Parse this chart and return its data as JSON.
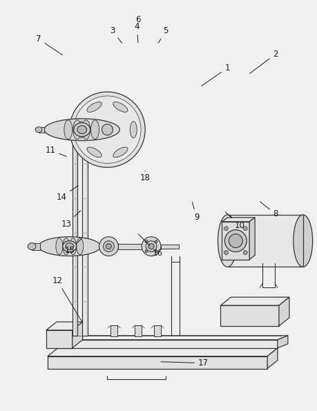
{
  "bg_color": "#f0f0f0",
  "line_color": "#333333",
  "figsize": [
    4.59,
    5.95
  ],
  "dpi": 100,
  "labels_data": [
    [
      1,
      330,
      498,
      290,
      470
    ],
    [
      2,
      400,
      518,
      360,
      488
    ],
    [
      3,
      162,
      552,
      178,
      532
    ],
    [
      4,
      198,
      558,
      200,
      532
    ],
    [
      5,
      240,
      552,
      228,
      532
    ],
    [
      6,
      200,
      568,
      200,
      558
    ],
    [
      7,
      55,
      540,
      92,
      515
    ],
    [
      8,
      400,
      285,
      375,
      305
    ],
    [
      9,
      285,
      280,
      278,
      305
    ],
    [
      10,
      348,
      268,
      325,
      290
    ],
    [
      11,
      72,
      378,
      98,
      368
    ],
    [
      12,
      82,
      188,
      120,
      125
    ],
    [
      13,
      95,
      270,
      118,
      292
    ],
    [
      14,
      88,
      310,
      115,
      328
    ],
    [
      15,
      100,
      232,
      120,
      252
    ],
    [
      16,
      228,
      228,
      198,
      258
    ],
    [
      17,
      295,
      68,
      230,
      70
    ],
    [
      18,
      210,
      338,
      210,
      348
    ]
  ]
}
